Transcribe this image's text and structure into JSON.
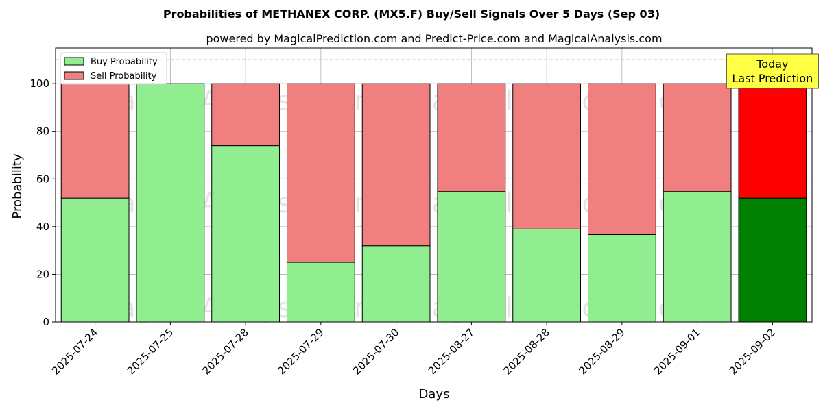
{
  "chart_data": {
    "type": "bar",
    "stacked": true,
    "title": "Probabilities of METHANEX CORP. (MX5.F) Buy/Sell Signals Over 5 Days (Sep 03)",
    "subtitle": "powered by MagicalPrediction.com and Predict-Price.com and MagicalAnalysis.com",
    "xlabel": "Days",
    "ylabel": "Probability",
    "ylim": [
      0,
      115
    ],
    "yticks": [
      0,
      20,
      40,
      60,
      80,
      100
    ],
    "grid": true,
    "legend_position": "top-left",
    "categories": [
      "2025-07-24",
      "2025-07-25",
      "2025-07-28",
      "2025-07-29",
      "2025-07-30",
      "2025-08-27",
      "2025-08-28",
      "2025-08-29",
      "2025-09-01",
      "2025-09-02"
    ],
    "series": [
      {
        "name": "Buy Probability",
        "color": "#90ee90",
        "highlight_color": "#008000",
        "values": [
          52,
          100,
          74,
          25,
          32,
          54.7,
          39,
          36.7,
          54.7,
          52
        ]
      },
      {
        "name": "Sell Probability",
        "color": "#f08080",
        "highlight_color": "#ff0000",
        "values": [
          48,
          0,
          26,
          75,
          68,
          45.3,
          61,
          63.3,
          45.3,
          48
        ]
      }
    ],
    "reference_line": {
      "y": 110,
      "style": "dashed"
    },
    "highlight_index": 9,
    "annotation": {
      "lines": [
        "Today",
        "Last Prediction"
      ],
      "background": "#ffff44"
    },
    "watermarks": [
      "MagicalAnalysis.com",
      "MagicalPrediction.com"
    ]
  }
}
